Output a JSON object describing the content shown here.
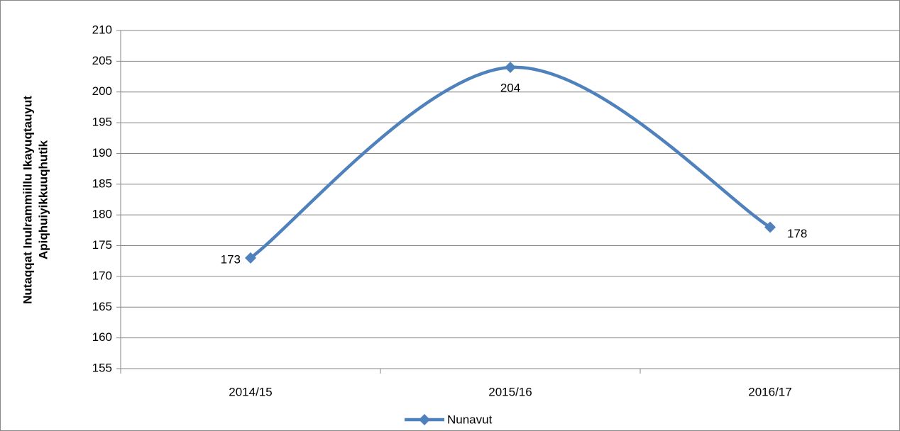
{
  "chart_data": {
    "type": "line",
    "y_axis_label": [
      "Nutaqqat Inulrammiillu Ikayuqtauyut",
      "Apiqhuiyikkuuqhutik"
    ],
    "categories": [
      "2014/15",
      "2015/16",
      "2016/17"
    ],
    "series": [
      {
        "name": "Nunavut",
        "color": "#4F81BD",
        "values": [
          173,
          204,
          178
        ]
      }
    ],
    "ylim": [
      155,
      210
    ],
    "yticks": [
      155,
      160,
      165,
      170,
      175,
      180,
      185,
      190,
      195,
      200,
      205,
      210
    ],
    "grid": true,
    "smooth": true,
    "legend": "bottom"
  }
}
